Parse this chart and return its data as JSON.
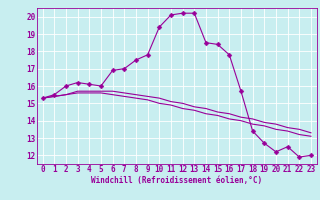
{
  "xlabel": "Windchill (Refroidissement éolien,°C)",
  "bg_color": "#c8eef0",
  "grid_color": "#ffffff",
  "line_color": "#990099",
  "x_ticks": [
    0,
    1,
    2,
    3,
    4,
    5,
    6,
    7,
    8,
    9,
    10,
    11,
    12,
    13,
    14,
    15,
    16,
    17,
    18,
    19,
    20,
    21,
    22,
    23
  ],
  "y_ticks": [
    12,
    13,
    14,
    15,
    16,
    17,
    18,
    19,
    20
  ],
  "ylim": [
    11.5,
    20.5
  ],
  "xlim": [
    -0.5,
    23.5
  ],
  "line1_x": [
    0,
    1,
    2,
    3,
    4,
    5,
    6,
    7,
    8,
    9,
    10,
    11,
    12,
    13,
    14,
    15,
    16,
    17,
    18,
    19,
    20,
    21,
    22,
    23
  ],
  "line1_y": [
    15.3,
    15.5,
    16.0,
    16.2,
    16.1,
    16.0,
    16.9,
    17.0,
    17.5,
    17.8,
    19.4,
    20.1,
    20.2,
    20.2,
    18.5,
    18.4,
    17.8,
    15.7,
    13.4,
    12.7,
    12.2,
    12.5,
    11.9,
    12.0
  ],
  "line2_x": [
    0,
    1,
    2,
    3,
    4,
    5,
    6,
    7,
    8,
    9,
    10,
    11,
    12,
    13,
    14,
    15,
    16,
    17,
    18,
    19,
    20,
    21,
    22,
    23
  ],
  "line2_y": [
    15.3,
    15.4,
    15.5,
    15.7,
    15.7,
    15.7,
    15.7,
    15.6,
    15.5,
    15.4,
    15.3,
    15.1,
    15.0,
    14.8,
    14.7,
    14.5,
    14.4,
    14.2,
    14.1,
    13.9,
    13.8,
    13.6,
    13.5,
    13.3
  ],
  "line3_x": [
    0,
    1,
    2,
    3,
    4,
    5,
    6,
    7,
    8,
    9,
    10,
    11,
    12,
    13,
    14,
    15,
    16,
    17,
    18,
    19,
    20,
    21,
    22,
    23
  ],
  "line3_y": [
    15.3,
    15.4,
    15.5,
    15.6,
    15.6,
    15.6,
    15.5,
    15.4,
    15.3,
    15.2,
    15.0,
    14.9,
    14.7,
    14.6,
    14.4,
    14.3,
    14.1,
    14.0,
    13.8,
    13.7,
    13.5,
    13.4,
    13.2,
    13.1
  ],
  "tick_fontsize": 5.5,
  "xlabel_fontsize": 5.5,
  "marker_size": 2.5,
  "line_width": 0.8
}
